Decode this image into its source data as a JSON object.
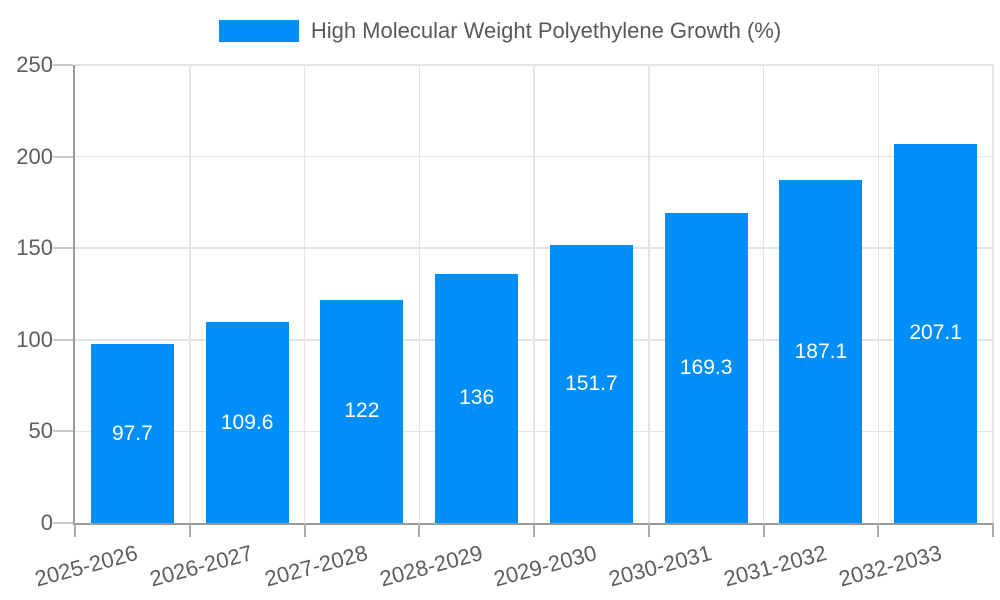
{
  "chart_data": {
    "type": "bar",
    "title": "High Molecular Weight Polyethylene Growth (%)",
    "categories": [
      "2025-2026",
      "2026-2027",
      "2027-2028",
      "2028-2029",
      "2029-2030",
      "2030-2031",
      "2031-2032",
      "2032-2033"
    ],
    "values": [
      97.7,
      109.6,
      122,
      136,
      151.7,
      169.3,
      187.1,
      207.1
    ],
    "value_labels": [
      "97.7",
      "109.6",
      "122",
      "136",
      "151.7",
      "169.3",
      "187.1",
      "207.1"
    ],
    "y_ticks": [
      0,
      50,
      100,
      150,
      200,
      250
    ],
    "ylim": [
      0,
      250
    ],
    "xlabel": "",
    "ylabel": "",
    "grid": true,
    "legend_position": "top"
  },
  "colors": {
    "bar": "#008FF8",
    "axis_label": "#5d5e60",
    "value_label": "#ffffff",
    "axis_line": "#9a9a9a",
    "gridline": "#e4e4e4",
    "background": "#ffffff"
  }
}
